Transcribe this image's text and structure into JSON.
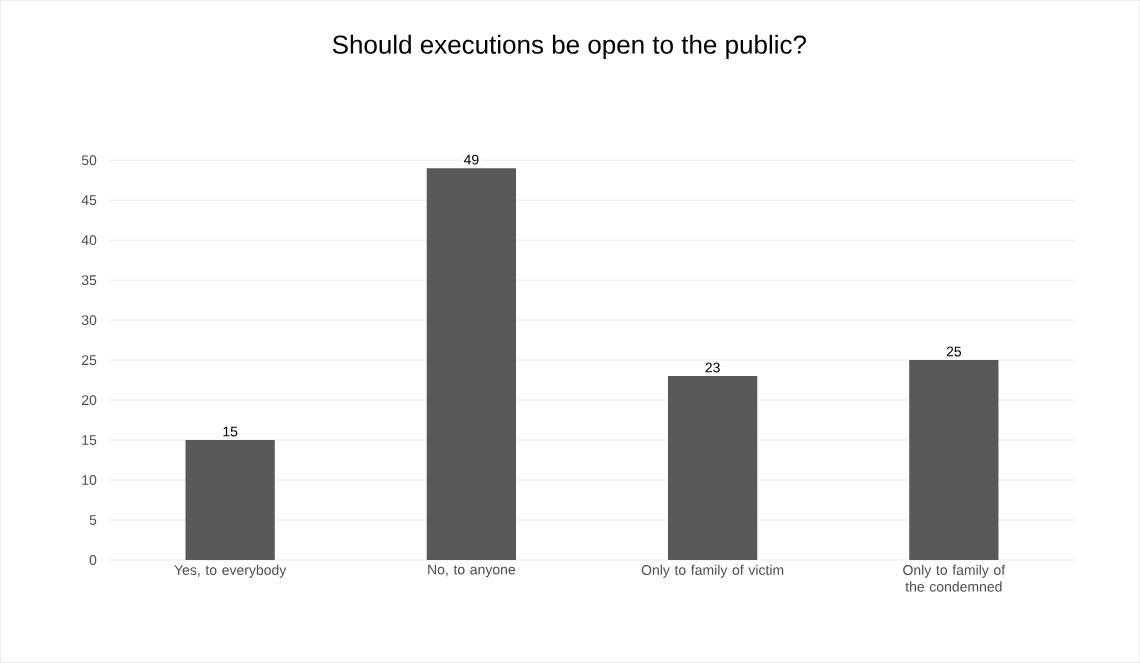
{
  "chart_data": {
    "type": "bar",
    "title": "Should executions be open to the public?",
    "categories": [
      "Yes, to everybody",
      "No, to anyone",
      "Only to family of victim",
      "Only to family of the condemned"
    ],
    "values": [
      15,
      49,
      23,
      25
    ],
    "color": "#595959",
    "ylim": [
      0,
      50
    ],
    "yticks": [
      0,
      5,
      10,
      15,
      20,
      25,
      30,
      35,
      40,
      45,
      50
    ],
    "grid": "y",
    "data_labels": true
  }
}
